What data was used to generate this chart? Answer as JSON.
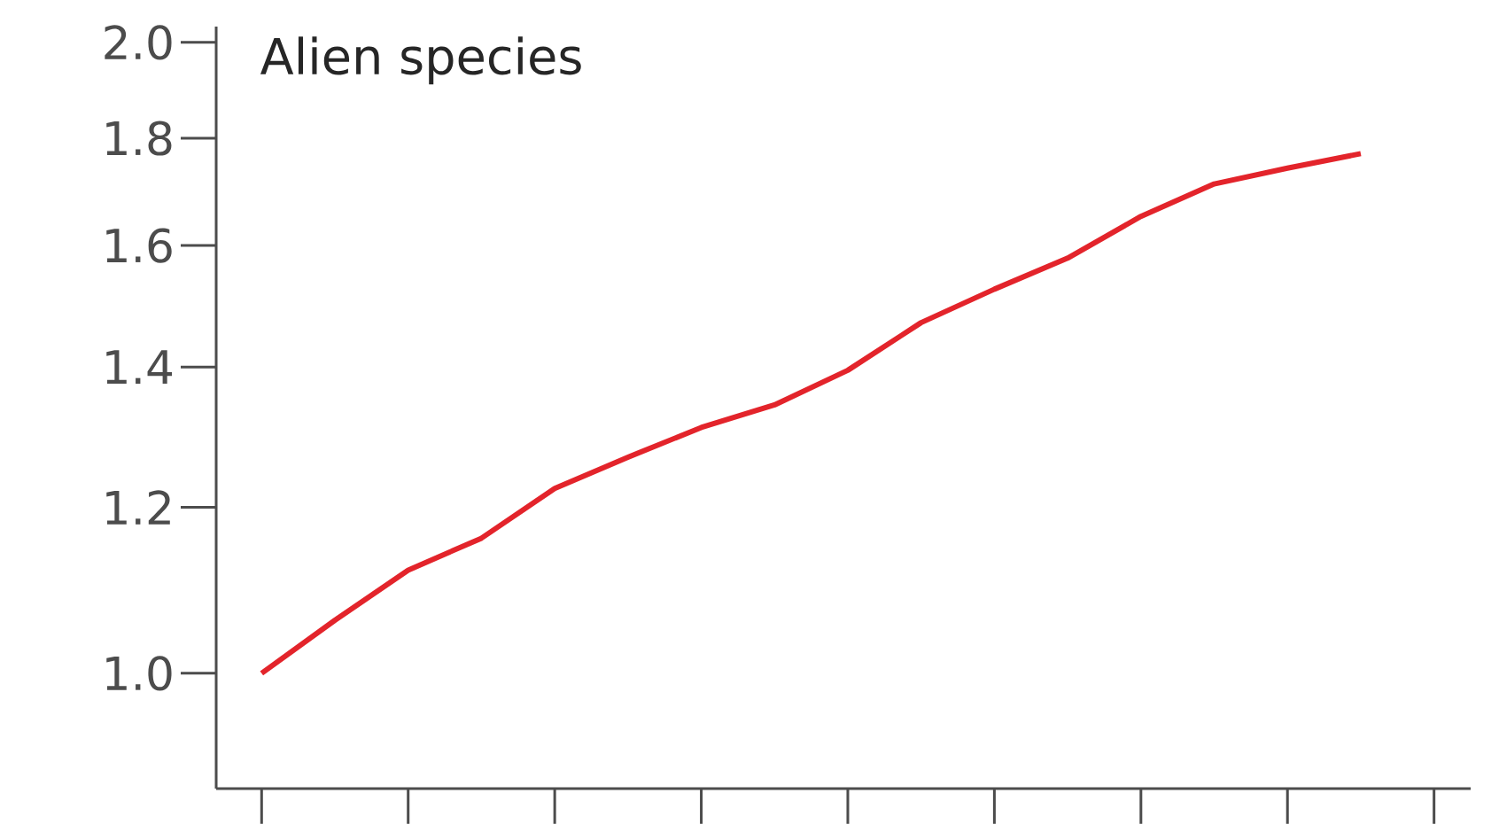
{
  "chart_data": {
    "type": "line",
    "title": "Alien species",
    "log": "y",
    "ylim": [
      0.881,
      2.035
    ],
    "yticks": [
      {
        "value": 1.0,
        "label": "1.0"
      },
      {
        "value": 1.2,
        "label": "1.2"
      },
      {
        "value": 1.4,
        "label": "1.4"
      },
      {
        "value": 1.6,
        "label": "1.6"
      },
      {
        "value": 1.8,
        "label": "1.8"
      },
      {
        "value": 2.0,
        "label": "2.0"
      }
    ],
    "tick_labels": "y",
    "marker": "none",
    "line_style": "solid",
    "categories": [
      null,
      null,
      null,
      null,
      null,
      null,
      null,
      null,
      null,
      null,
      null,
      null,
      null,
      null,
      null,
      null
    ],
    "series": [
      {
        "color": "#e3242b",
        "values": [
          1.0,
          1.06,
          1.12,
          1.16,
          1.225,
          1.268,
          1.31,
          1.343,
          1.395,
          1.47,
          1.525,
          1.578,
          1.652,
          1.712,
          1.742,
          1.77
        ]
      }
    ]
  }
}
